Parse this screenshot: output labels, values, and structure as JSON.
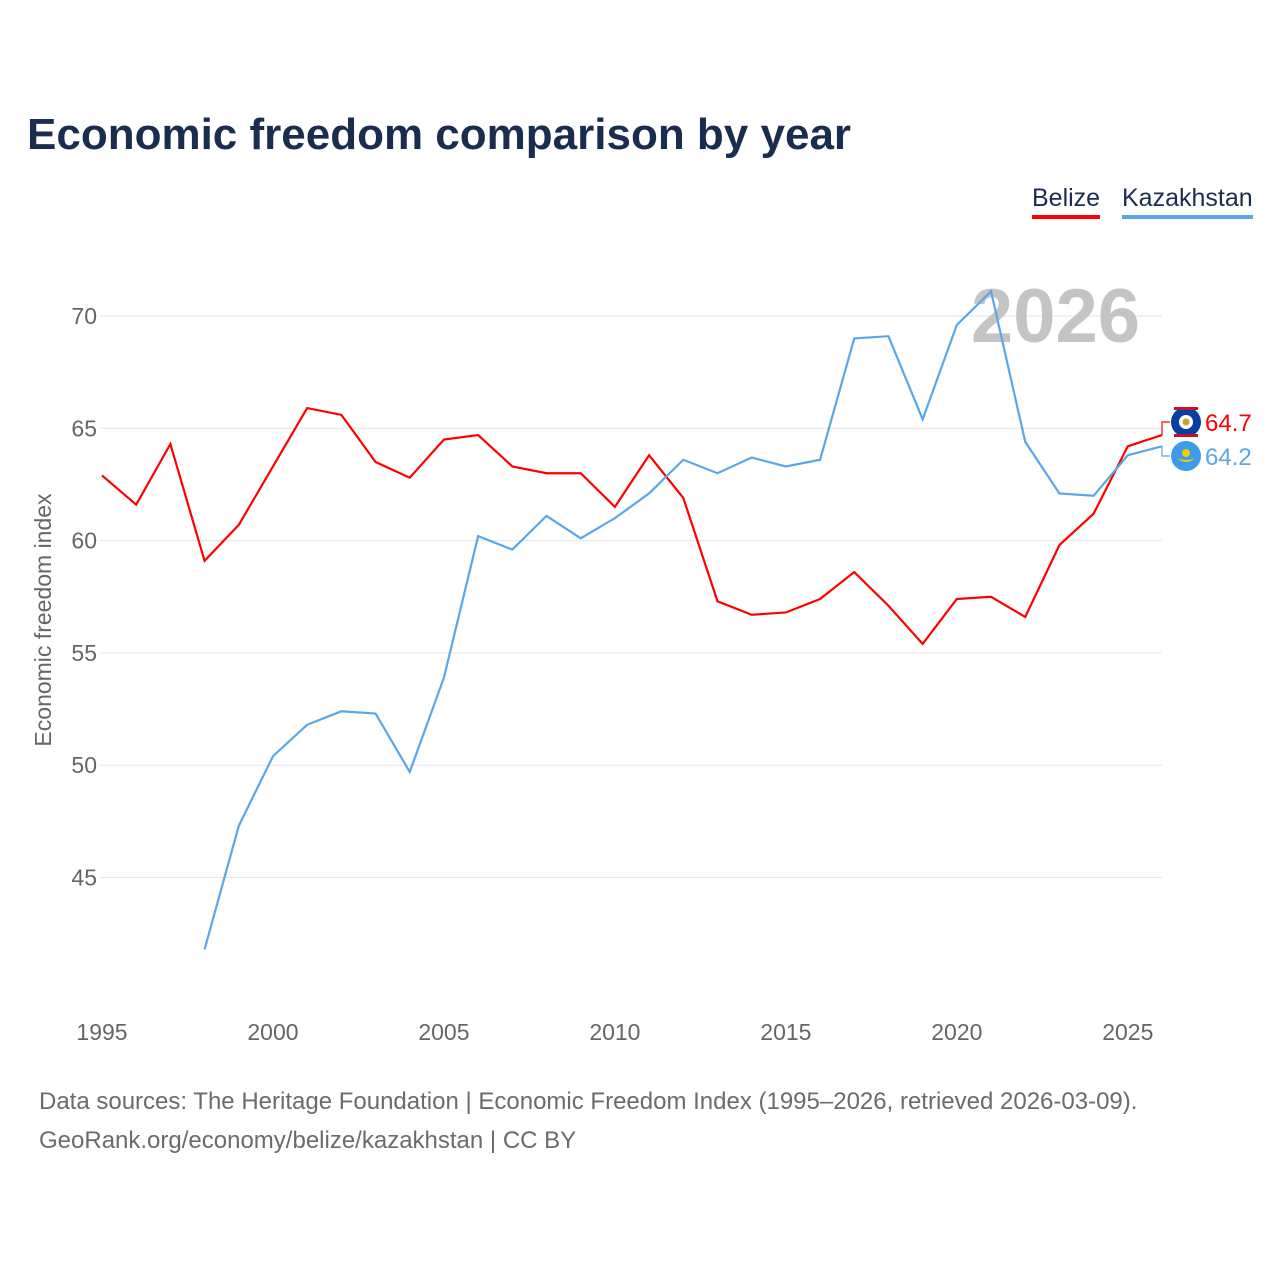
{
  "chart_data": {
    "type": "line",
    "title": "Economic freedom comparison by year",
    "xlabel": "",
    "ylabel": "Economic freedom index",
    "xlim": [
      1995,
      2026
    ],
    "ylim": [
      40.5,
      72.5
    ],
    "x_ticks": [
      "1995",
      "2000",
      "2005",
      "2010",
      "2015",
      "2020",
      "2025"
    ],
    "y_ticks": [
      "45",
      "50",
      "55",
      "60",
      "65",
      "70"
    ],
    "grid": true,
    "legend_placement": "top-right",
    "watermark_year": "2026",
    "series": [
      {
        "name": "Belize",
        "color": "#ff0000",
        "end_label": "64.7",
        "x": [
          1995,
          1996,
          1997,
          1998,
          1999,
          2000,
          2001,
          2002,
          2003,
          2004,
          2005,
          2006,
          2007,
          2008,
          2009,
          2010,
          2011,
          2012,
          2013,
          2014,
          2015,
          2016,
          2017,
          2018,
          2019,
          2020,
          2021,
          2022,
          2023,
          2024,
          2025,
          2026
        ],
        "values": [
          62.9,
          61.6,
          64.3,
          59.1,
          60.7,
          63.3,
          65.9,
          65.6,
          63.5,
          62.8,
          64.5,
          64.7,
          63.3,
          63.0,
          63.0,
          61.5,
          63.8,
          61.9,
          57.3,
          56.7,
          56.8,
          57.4,
          58.6,
          57.1,
          55.4,
          57.4,
          57.5,
          56.6,
          59.8,
          61.2,
          64.2,
          64.7
        ]
      },
      {
        "name": "Kazakhstan",
        "color": "#5aa6ea",
        "end_label": "64.2",
        "x": [
          1998,
          1999,
          2000,
          2001,
          2002,
          2003,
          2004,
          2005,
          2006,
          2007,
          2008,
          2009,
          2010,
          2011,
          2012,
          2013,
          2014,
          2015,
          2016,
          2017,
          2018,
          2019,
          2020,
          2021,
          2022,
          2023,
          2024,
          2025,
          2026
        ],
        "values": [
          41.8,
          47.3,
          50.4,
          51.8,
          52.4,
          52.3,
          49.7,
          53.9,
          60.2,
          59.6,
          61.1,
          60.1,
          61.0,
          62.1,
          63.6,
          63.0,
          63.7,
          63.3,
          63.6,
          69.0,
          69.1,
          65.4,
          69.6,
          71.1,
          64.4,
          62.1,
          62.0,
          63.8,
          64.2
        ]
      }
    ]
  },
  "footer": {
    "line1": "Data sources: The Heritage Foundation | Economic Freedom Index (1995–2026, retrieved 2026-03-09).",
    "line2": "GeoRank.org/economy/belize/kazakhstan | CC BY"
  }
}
